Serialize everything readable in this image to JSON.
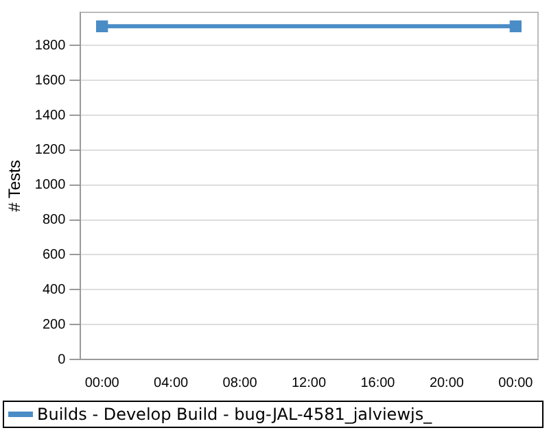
{
  "chart_data": {
    "type": "line",
    "ylabel": "# Tests",
    "x": [
      0,
      24
    ],
    "series": [
      {
        "name": "Builds - Develop Build - bug-JAL-4581_jalviewjs_",
        "color": "#4a8cc6",
        "values": [
          1910,
          1910
        ]
      }
    ],
    "xlim": [
      -1.25,
      25.3
    ],
    "xticks": [
      {
        "value": 0,
        "label": "00:00"
      },
      {
        "value": 4,
        "label": "04:00"
      },
      {
        "value": 8,
        "label": "08:00"
      },
      {
        "value": 12,
        "label": "12:00"
      },
      {
        "value": 16,
        "label": "16:00"
      },
      {
        "value": 20,
        "label": "20:00"
      },
      {
        "value": 24,
        "label": "00:00"
      }
    ],
    "ylim": [
      0,
      1990
    ],
    "yticks": [
      0,
      200,
      400,
      600,
      800,
      1000,
      1200,
      1400,
      1600,
      1800
    ],
    "grid": "y",
    "legend": "bottom",
    "marker": "square",
    "line_style": "solid"
  }
}
